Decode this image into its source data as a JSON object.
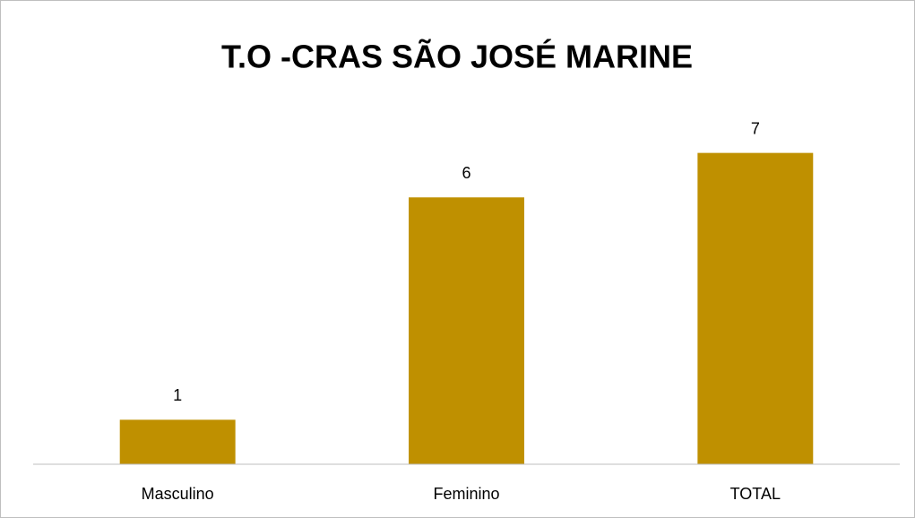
{
  "chart_data": {
    "type": "bar",
    "title": "T.O -CRAS SÃO JOSÉ MARINE",
    "categories": [
      "Masculino",
      "Feminino",
      "TOTAL"
    ],
    "values": [
      1,
      6,
      7
    ],
    "color": "#bf9000",
    "ylim": [
      0,
      8
    ],
    "grid": false
  }
}
